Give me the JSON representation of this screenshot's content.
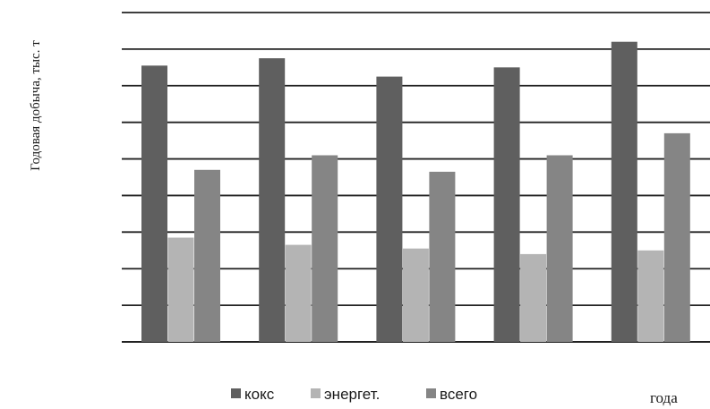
{
  "chart_data": {
    "type": "bar",
    "title": "",
    "xlabel": "года",
    "ylabel": "Годовая добыча, тыс. т",
    "categories": [
      "",
      "",
      "",
      "",
      ""
    ],
    "ylim": [
      0,
      9
    ],
    "grid": true,
    "legend_position": "bottom",
    "series": [
      {
        "name": "кокс",
        "color": "#5f5f5f",
        "values": [
          7.55,
          7.75,
          7.25,
          7.5,
          8.2
        ]
      },
      {
        "name": "энергет.",
        "color": "#b4b4b4",
        "values": [
          2.85,
          2.65,
          2.55,
          2.4,
          2.5
        ]
      },
      {
        "name": "всего",
        "color": "#858585",
        "values": [
          4.7,
          5.1,
          4.65,
          5.1,
          5.7
        ]
      }
    ]
  }
}
